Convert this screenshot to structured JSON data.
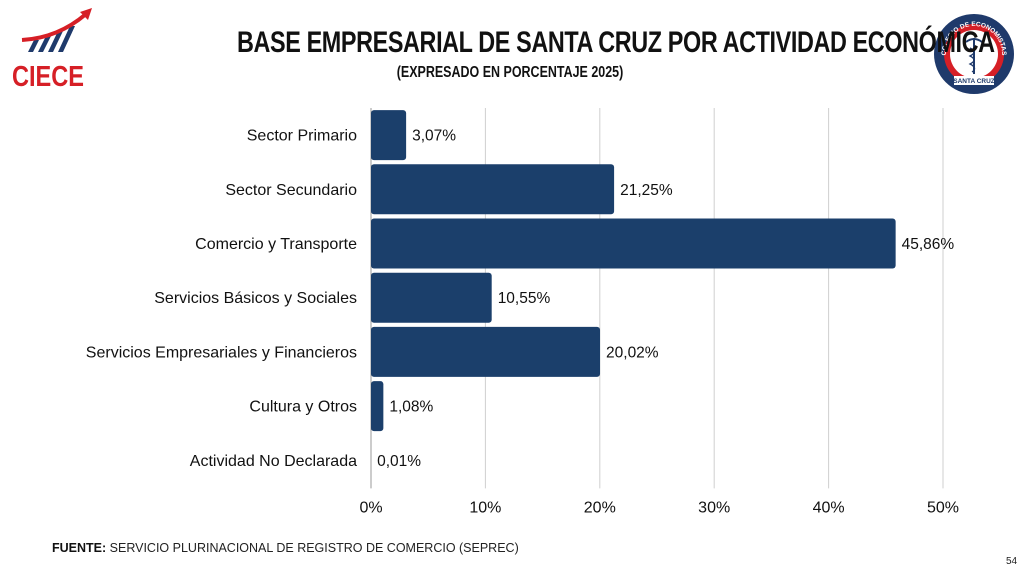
{
  "header": {
    "title": "BASE EMPRESARIAL DE SANTA CRUZ POR ACTIVIDAD ECONÓMICA",
    "subtitle": "(EXPRESADO EN PORCENTAJE 2025)",
    "logo_left_text": "CIECE",
    "logo_right_top_text": "COLEGIO DE ECONOMISTAS",
    "logo_right_bottom_text": "SANTA CRUZ"
  },
  "colors": {
    "bar": "#1b3f6b",
    "grid": "#cfcfcf",
    "logo_red": "#d61f26",
    "logo_navy": "#1f3a6b"
  },
  "chart_data": {
    "type": "bar",
    "orientation": "horizontal",
    "title": "BASE EMPRESARIAL DE SANTA CRUZ POR ACTIVIDAD ECONÓMICA",
    "subtitle": "(EXPRESADO EN PORCENTAJE 2025)",
    "categories": [
      "Sector Primario",
      "Sector Secundario",
      "Comercio y Transporte",
      "Servicios Básicos y Sociales",
      "Servicios Empresariales y Financieros",
      "Cultura y Otros",
      "Actividad No Declarada"
    ],
    "values": [
      3.07,
      21.25,
      45.86,
      10.55,
      20.02,
      1.08,
      0.01
    ],
    "value_labels": [
      "3,07%",
      "21,25%",
      "45,86%",
      "10,55%",
      "20,02%",
      "1,08%",
      "0,01%"
    ],
    "xlabel": "",
    "ylabel": "",
    "xlim": [
      0,
      50
    ],
    "x_ticks": [
      0,
      10,
      20,
      30,
      40,
      50
    ],
    "x_tick_labels": [
      "0%",
      "10%",
      "20%",
      "30%",
      "40%",
      "50%"
    ],
    "grid": "vertical",
    "legend": "none"
  },
  "footer": {
    "source_label": "FUENTE:",
    "source_text": " SERVICIO PLURINACIONAL DE REGISTRO DE COMERCIO (SEPREC)",
    "page_number": "54"
  }
}
